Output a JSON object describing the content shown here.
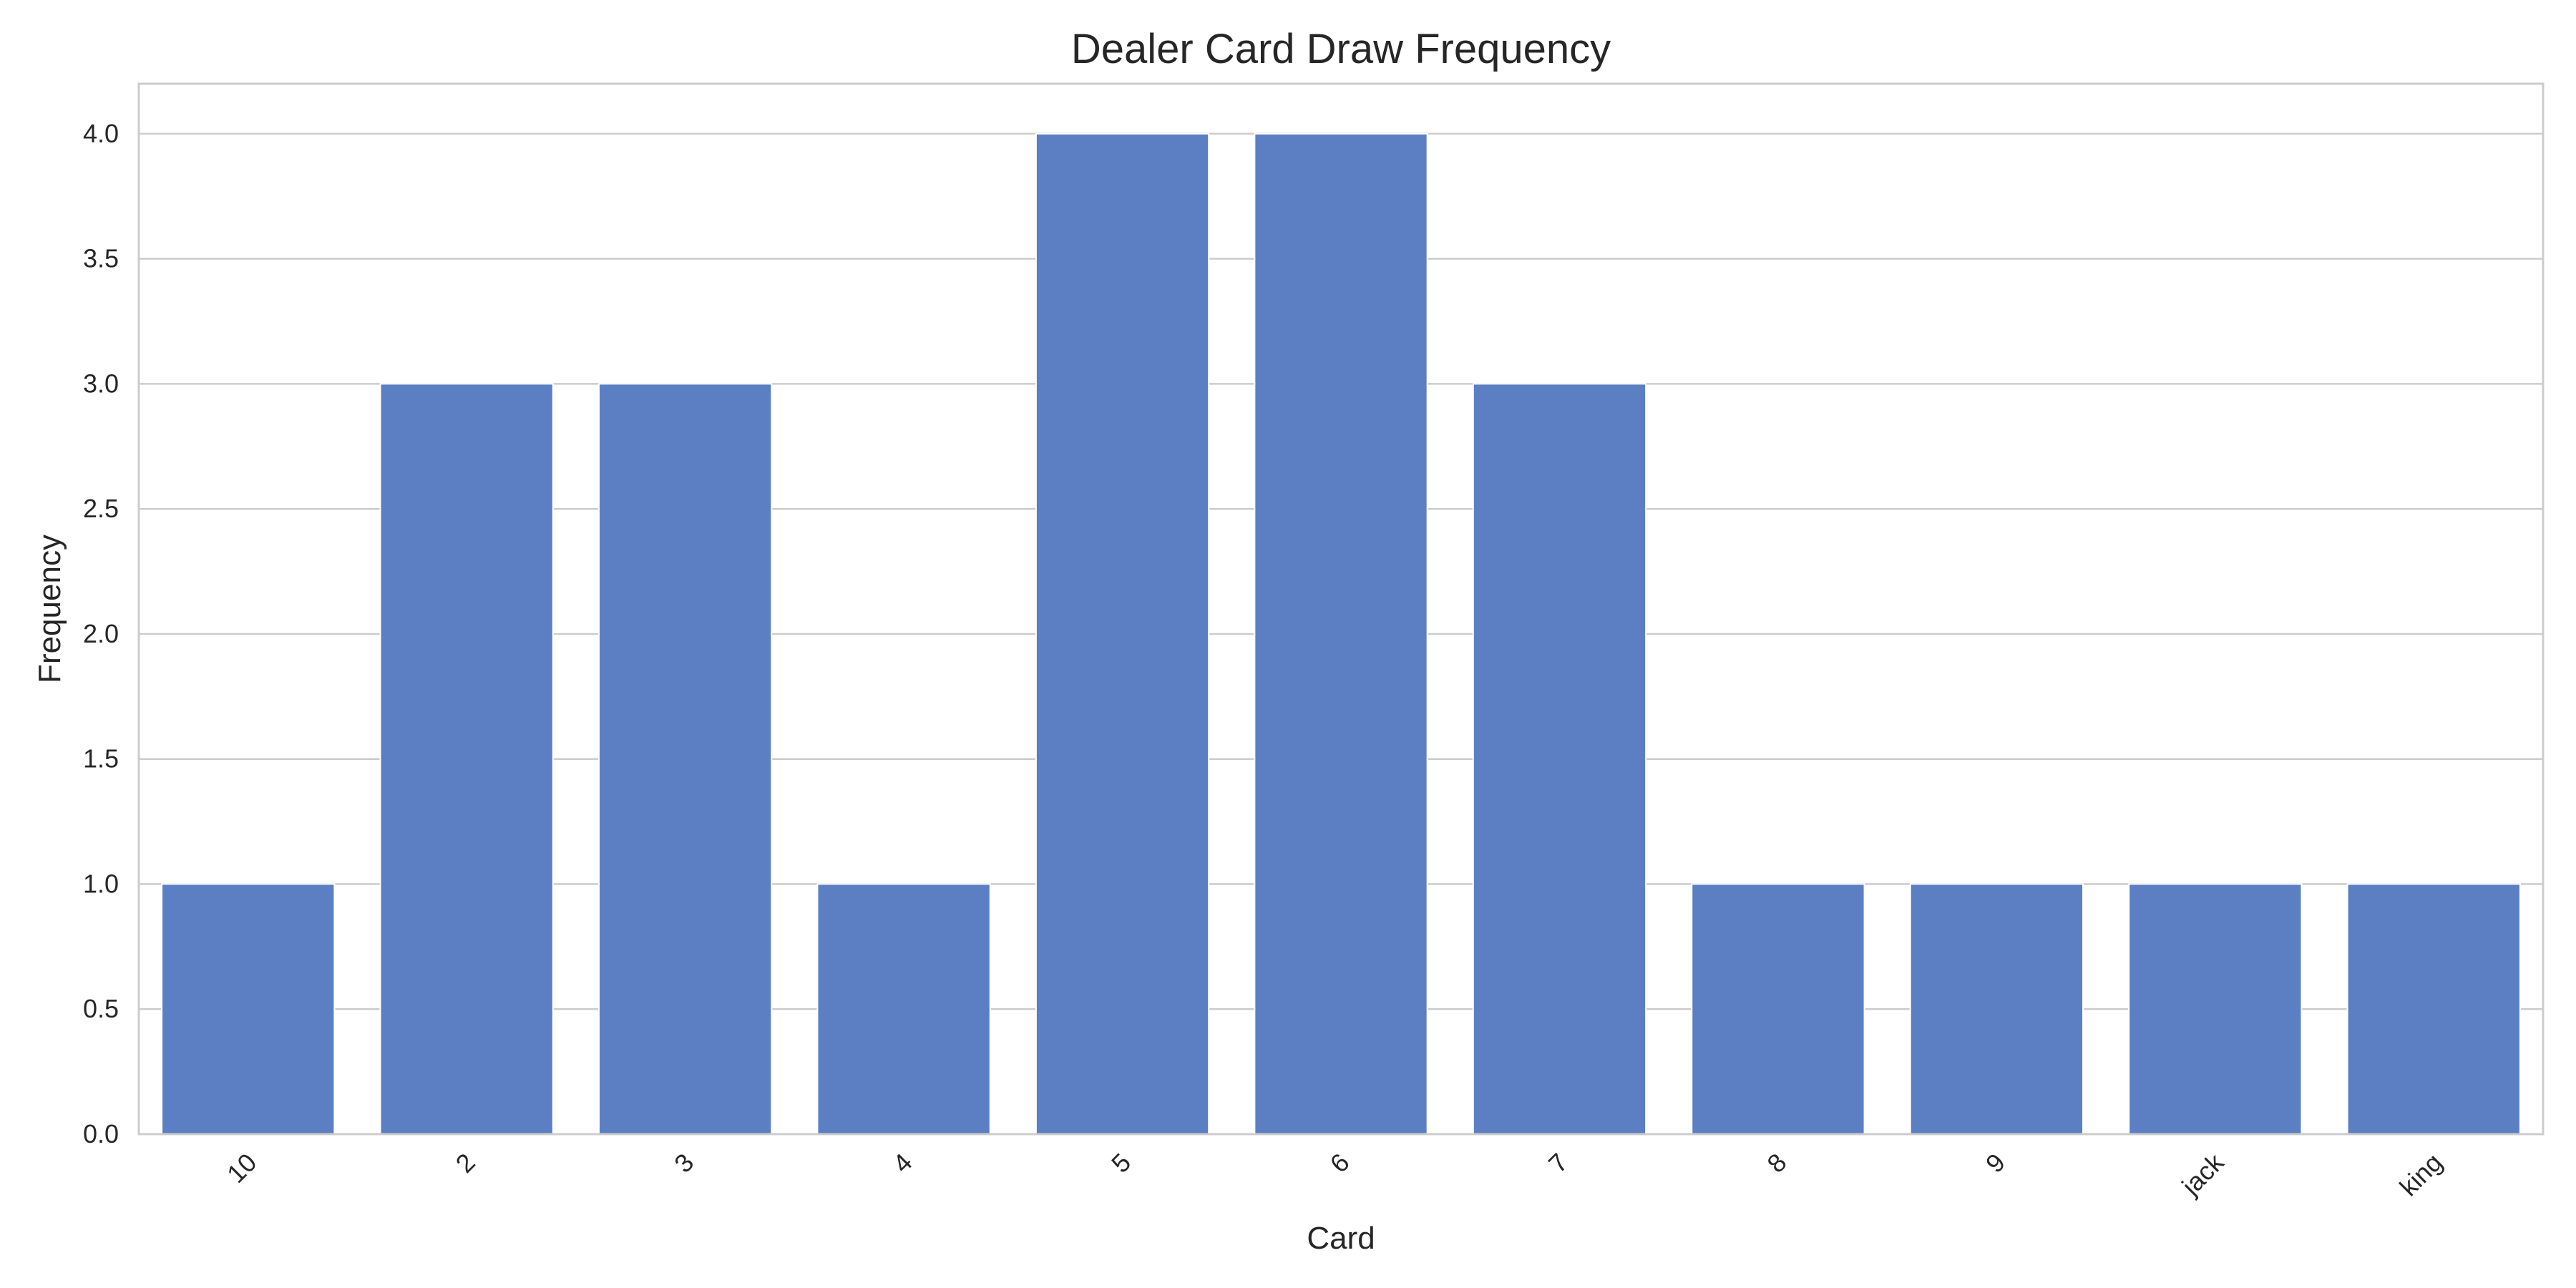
{
  "chart_data": {
    "type": "bar",
    "title": "Dealer Card Draw Frequency",
    "xlabel": "Card",
    "ylabel": "Frequency",
    "categories": [
      "10",
      "2",
      "3",
      "4",
      "5",
      "6",
      "7",
      "8",
      "9",
      "jack",
      "king"
    ],
    "values": [
      1,
      3,
      3,
      1,
      4,
      4,
      3,
      1,
      1,
      1,
      1
    ],
    "ylim": [
      0,
      4.2
    ],
    "yticks": [
      "0.0",
      "0.5",
      "1.0",
      "1.5",
      "2.0",
      "2.5",
      "3.0",
      "3.5",
      "4.0"
    ],
    "grid": true,
    "bar_color": "#5b7fc2",
    "grid_color": "#cccccc"
  }
}
